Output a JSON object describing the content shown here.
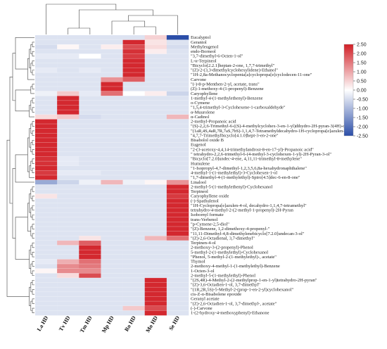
{
  "chart_data": {
    "type": "heatmap",
    "columns": [
      "La HD",
      "Tv HD",
      "Tm HD",
      "Mp HD",
      "Ro HD",
      "Mo HD",
      "Se HD"
    ],
    "rows": [
      "Eucalyptol",
      "Geraniol",
      "Methyleugenol",
      "endo-Borneol",
      "\"3,7-dimethyl-6-Octen-1-ol\"",
      "L-α-Terpineol",
      "\"Bicyclo[2.2.1]heptan-2-one, 1,7,7-trimethyl\"",
      "\"(Z)-2-(3,3-dimethylcyclohexylidene)-Ethanol\"",
      "\"1H-2,8a-Methanocyclopenta[a]cyclopropa[e]cyclodecen-11-one\"",
      "Carvone",
      "\"(-)-8-p-Menthen-2-yl, acetate, trans\"",
      "(Z)-1-methoxy-4-(1-propenyl)-Benzene",
      "Caryophyllene",
      "1-methyl-4-(1-methylethenyl)-Benzene",
      "o-Cymene",
      "\"1,5,4-trimethyl-3-Cyclohexene-1-carboxaldehyde\"",
      "α-Muurolene",
      "α-Cadinol",
      "2-methyl-Propanoic acid",
      "\"(S)-2,2,6-Trimethyl-6-((S)-4-methylcyclohex-3-en-1-yl)dihydro-2H-pyran-3(4H)-one\"",
      "\"(1aR,4S,4aR,7R,7aS,7bS)-1,1,4,7-Tetramethyldecahydro-1H-cyclopropa[e]azulen-4-ol\"",
      "\"4,7,7-Trimethylbicyclo[4.1.0]hept-3-en-2-one\"",
      "Bisabolol oxide B",
      "Eugenol",
      "\"2-(3-acetoxy-4,4,14-trimethylandrost-8-en-17-yl)-Propanoic acid\"",
      "\" tetrahydro-2,2,6-trimethyl-6-(4-methyl-3-cyclohexen-1-yl)-2H-Pyran-3-ol\"",
      "\"Bicyclo[7.2.0]undec-4-ene, 4,11,11-trimethyl-8-methylene\"",
      "Humulene",
      "\"1-Isopropyl-4,7-dimethyl-1,2,3,5,6,8a-hexahydronaphthalene\"",
      "4-methyl-1-(1-methylethyl)-3-Cyclohexen-1-ol",
      "\"1,7-dimethyl-4-(1-methylethyl)-Spiro[4.5]dec-6-en-8-one\"",
      "Linalool",
      "2-methyl-5-(1-methylethenyl)-Cyclohexanol",
      "Terpineol",
      "Caryophyllene oxide",
      "(-)-Spathulenol",
      "\"1H-Cyclopropa[e]azulen-4-ol, decahydro-1,1,4,7-tetramethyl\"",
      "tetrahydro-4-methyl-2-(2-methyl-1-propenyl)-2H-Pyran",
      "Isobornyl formate",
      "trans-Verbenol",
      "\"p-Cymene-2,5-diol\"",
      "\"(Z)-Benzene, 1,2-dimethoxy-4-propenyl-\"",
      "\"11,11-Dimethyl-4,8-dimethylenebicyclo[7.2.0]undecan-3-ol\"",
      "\"(Z)-2,6-Octadienal, 3,7-dimethyl\"",
      "Terpinen-4-ol",
      "2-methoxy-3-(2-propenyl)-Phenol",
      "5-methyl-2-(1-methylethyl)-Cyclohexanol",
      "\"Phenol, 5-methyl-2-(1-methylethyl)-, acetate\"",
      "Thymol",
      "2-methoxy-4-methyl-1-(1-methylethyl)-Benzene",
      "1-Octen-3-ol",
      "2-methyl-5-(1-methylethyl)-Phenol",
      "\"(2S,4R)-4-Methyl-2-(2-methylprop-1-en-1-yl)tetrahydro-2H-pyran\"",
      "\"(Z)-3,6-Octadien-1-ol, 3,7-dimethyl\"",
      "\"(1R,2R,5S)-5-Methyl-2-(prop-1-en-2-yl)cyclohexanol\"",
      "cis-Z-α-Bisabolene epoxide",
      "Geranyl acetate",
      "\"(Z)-2,6-Octadien-1-ol, 3,7-dimethyl-, acetate\"",
      "(-)-Carvone",
      "1-(2-hydroxy-4-methoxyphenyl)-Ethanone"
    ],
    "values": [
      [
        -0.4,
        -0.4,
        -0.4,
        -0.4,
        -0.4,
        0.5,
        -2.5
      ],
      [
        -0.4,
        -0.4,
        -0.4,
        -0.4,
        2.4,
        0.3,
        -0.4
      ],
      [
        -0.5,
        0.1,
        -0.4,
        0.2,
        2.0,
        0.4,
        -0.5
      ],
      [
        -0.4,
        -0.4,
        -0.4,
        -0.4,
        2.3,
        0.2,
        -0.4
      ],
      [
        -0.3,
        -0.3,
        0.0,
        -0.4,
        2.2,
        -0.4,
        -0.4
      ],
      [
        -0.4,
        -0.4,
        -0.4,
        -0.4,
        2.4,
        -0.4,
        -0.4
      ],
      [
        -0.4,
        -0.4,
        -0.4,
        -0.4,
        2.4,
        -0.4,
        -0.4
      ],
      [
        -0.3,
        -0.4,
        -0.3,
        -0.4,
        2.4,
        -0.4,
        -0.4
      ],
      [
        -0.4,
        -0.4,
        -0.4,
        -0.4,
        2.4,
        -0.4,
        -0.4
      ],
      [
        -0.4,
        -0.4,
        -0.4,
        1.2,
        1.8,
        -0.4,
        -0.4
      ],
      [
        -0.4,
        -0.4,
        -0.4,
        2.4,
        -0.4,
        -0.4,
        -0.4
      ],
      [
        -0.4,
        -0.4,
        -0.4,
        2.4,
        -0.4,
        -0.4,
        -0.4
      ],
      [
        -0.2,
        0.6,
        -0.3,
        1.6,
        0.0,
        0.2,
        -0.6
      ],
      [
        -0.4,
        2.4,
        -0.4,
        -0.4,
        -0.4,
        -0.4,
        -0.4
      ],
      [
        -0.4,
        2.4,
        -0.4,
        -0.4,
        -0.4,
        -0.4,
        -0.4
      ],
      [
        -0.4,
        2.4,
        -0.4,
        -0.4,
        -0.4,
        -0.4,
        -0.4
      ],
      [
        -0.4,
        2.4,
        -0.4,
        -0.4,
        -0.4,
        -0.4,
        -0.4
      ],
      [
        0.4,
        0.6,
        -0.5,
        -0.4,
        -0.4,
        -0.4,
        0.8
      ],
      [
        2.4,
        -0.4,
        -0.4,
        -0.4,
        -0.4,
        -0.4,
        -0.4
      ],
      [
        2.4,
        -0.4,
        -0.4,
        -0.4,
        -0.4,
        -0.4,
        -0.4
      ],
      [
        2.4,
        -0.4,
        -0.4,
        -0.4,
        -0.4,
        -0.4,
        -0.4
      ],
      [
        2.4,
        -0.4,
        -0.4,
        -0.4,
        -0.4,
        -0.4,
        -0.4
      ],
      [
        2.4,
        -0.4,
        -0.4,
        -0.4,
        -0.4,
        -0.4,
        -0.4
      ],
      [
        2.4,
        -0.4,
        -0.4,
        -0.4,
        -0.4,
        -0.4,
        -0.4
      ],
      [
        2.4,
        -0.4,
        -0.4,
        -0.4,
        -0.4,
        -0.4,
        -0.4
      ],
      [
        2.4,
        -0.4,
        -0.4,
        -0.4,
        -0.4,
        -0.4,
        -0.4
      ],
      [
        2.3,
        -0.3,
        -0.4,
        -0.4,
        -0.4,
        -0.4,
        -0.4
      ],
      [
        2.3,
        -0.3,
        -0.4,
        -0.4,
        -0.4,
        -0.4,
        -0.4
      ],
      [
        2.4,
        -0.4,
        -0.4,
        -0.4,
        -0.4,
        -0.4,
        -0.4
      ],
      [
        2.2,
        -0.3,
        -0.3,
        -0.4,
        -0.4,
        -0.4,
        -0.4
      ],
      [
        2.4,
        -0.4,
        -0.4,
        -0.4,
        -0.4,
        -0.4,
        -0.4
      ],
      [
        -1.2,
        -0.6,
        -0.2,
        0.8,
        -0.2,
        0.1,
        1.2
      ],
      [
        -0.4,
        -0.4,
        -0.4,
        -0.4,
        -0.4,
        -0.4,
        2.4
      ],
      [
        -0.4,
        -0.4,
        -0.4,
        -0.4,
        -0.4,
        -0.4,
        2.4
      ],
      [
        0.3,
        -0.4,
        -0.4,
        -0.4,
        -0.4,
        -0.4,
        2.2
      ],
      [
        -0.4,
        -0.4,
        -0.4,
        -0.4,
        -0.4,
        -0.4,
        2.4
      ],
      [
        -0.4,
        -0.4,
        -0.4,
        -0.4,
        -0.4,
        -0.4,
        2.4
      ],
      [
        -0.4,
        -0.4,
        -0.4,
        -0.4,
        -0.4,
        -0.4,
        2.4
      ],
      [
        -0.4,
        -0.4,
        -0.4,
        -0.4,
        -0.4,
        -0.4,
        2.4
      ],
      [
        -0.4,
        -0.4,
        -0.4,
        -0.4,
        -0.4,
        -0.4,
        2.4
      ],
      [
        -0.4,
        -0.4,
        -0.4,
        -0.4,
        -0.4,
        -0.4,
        2.4
      ],
      [
        -0.4,
        -0.4,
        -0.4,
        -0.4,
        -0.4,
        -0.4,
        2.4
      ],
      [
        -0.4,
        -0.4,
        -0.4,
        -0.4,
        -0.4,
        -0.4,
        2.4
      ],
      [
        -0.4,
        -0.4,
        0.3,
        -0.4,
        -0.4,
        0.8,
        1.6
      ],
      [
        -0.4,
        0.8,
        1.8,
        -0.4,
        -0.4,
        -0.4,
        -0.4
      ],
      [
        -0.4,
        -0.4,
        2.4,
        -0.4,
        -0.4,
        -0.4,
        -0.4
      ],
      [
        -0.4,
        -0.4,
        2.4,
        -0.4,
        -0.4,
        -0.4,
        -0.4
      ],
      [
        -0.4,
        -0.4,
        2.4,
        -0.4,
        -0.4,
        -0.4,
        -0.4
      ],
      [
        -0.3,
        0.9,
        1.6,
        -0.4,
        -0.4,
        -0.4,
        -0.4
      ],
      [
        -0.4,
        1.3,
        1.5,
        -0.4,
        -0.4,
        -0.4,
        -0.4
      ],
      [
        0.1,
        1.3,
        1.3,
        -0.4,
        -0.4,
        -0.4,
        -0.4
      ],
      [
        -0.4,
        0.4,
        2.0,
        -0.4,
        -0.4,
        -0.4,
        -0.4
      ],
      [
        -0.4,
        -0.4,
        -0.4,
        -0.4,
        -0.4,
        2.4,
        -0.4
      ],
      [
        -0.4,
        -0.4,
        -0.4,
        -0.4,
        -0.4,
        2.4,
        -0.4
      ],
      [
        -0.4,
        -0.4,
        -0.4,
        -0.4,
        -0.4,
        2.4,
        -0.4
      ],
      [
        -0.4,
        -0.4,
        -0.4,
        -0.4,
        -0.4,
        2.4,
        -0.4
      ],
      [
        -0.4,
        -0.4,
        -0.4,
        -0.4,
        -0.4,
        2.4,
        -0.4
      ],
      [
        -0.4,
        -0.4,
        -0.4,
        -0.4,
        -0.4,
        2.4,
        -0.4
      ],
      [
        -0.4,
        -0.4,
        -0.4,
        -0.4,
        0.6,
        2.0,
        -0.4
      ],
      [
        -0.4,
        -0.4,
        -0.4,
        -0.4,
        -0.4,
        2.4,
        -0.4
      ]
    ],
    "colorbar": {
      "ticks": [
        "2.50",
        "2.00",
        "1.50",
        "1.00",
        "0.50",
        "0.00",
        "-0.50",
        "-1.00",
        "-1.50",
        "-2.00",
        "-2.50"
      ],
      "range": [
        -2.5,
        2.5
      ],
      "colors": {
        "low": "#2b4ea8",
        "mid": "#ffffff",
        "high": "#d11f26"
      }
    },
    "col_dendrogram": true,
    "row_dendrogram": true,
    "grid": false
  }
}
